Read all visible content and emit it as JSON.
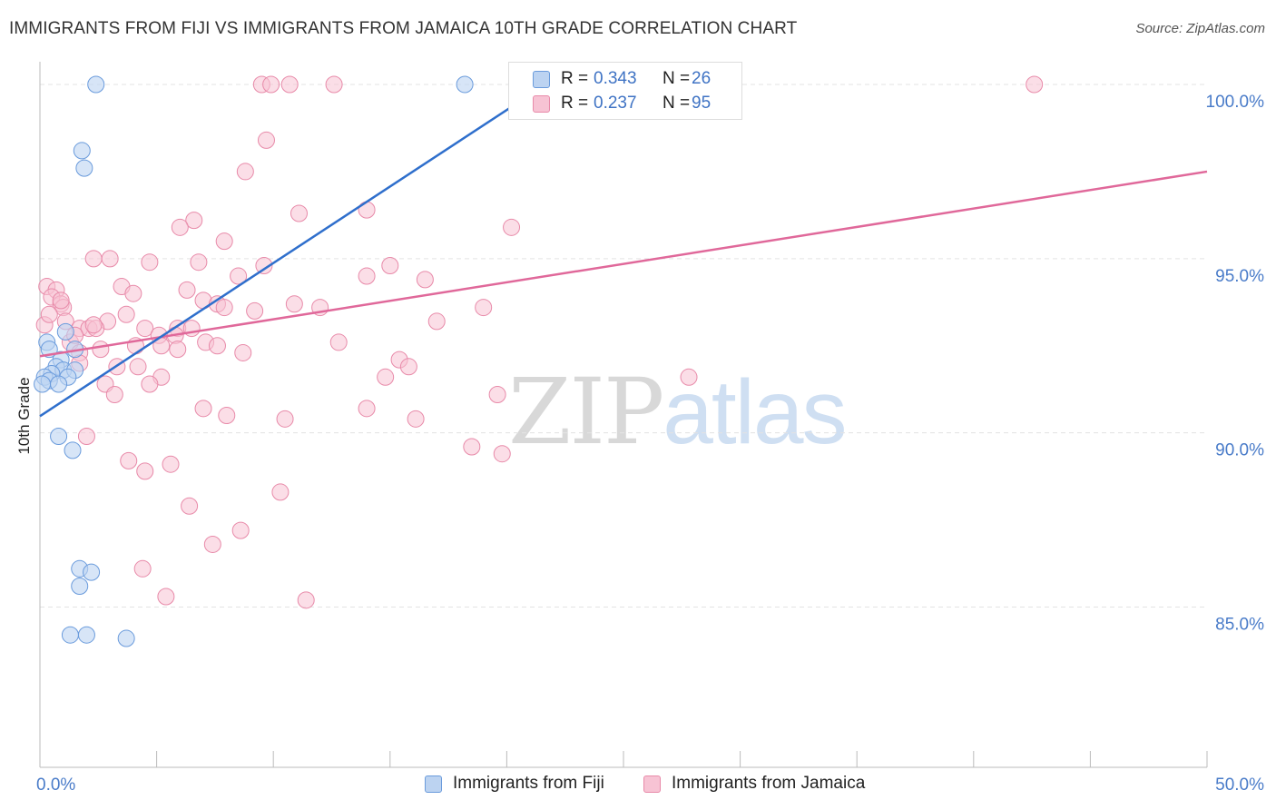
{
  "title": "IMMIGRANTS FROM FIJI VS IMMIGRANTS FROM JAMAICA 10TH GRADE CORRELATION CHART",
  "source": "Source: ZipAtlas.com",
  "watermark": {
    "zip": "ZIP",
    "atlas": "atlas"
  },
  "legend": {
    "fiji": {
      "r_label": "R =",
      "r_value": "0.343",
      "n_label": "N =",
      "n_value": "26"
    },
    "jamaica": {
      "r_label": "R =",
      "r_value": "0.237",
      "n_label": "N =",
      "n_value": "95"
    }
  },
  "bottom_legend": {
    "fiji": "Immigrants from Fiji",
    "jamaica": "Immigrants from Jamaica"
  },
  "colors": {
    "fiji_fill": "#bcd3f1",
    "fiji_stroke": "#6a9bdc",
    "fiji_line": "#2f6fcc",
    "jamaica_fill": "#f7c3d4",
    "jamaica_stroke": "#e88aa9",
    "jamaica_line": "#e0689a",
    "grid": "#e3e3e3",
    "tick_text": "#4a7cc9"
  },
  "chart_data": {
    "type": "scatter",
    "title": "IMMIGRANTS FROM FIJI VS IMMIGRANTS FROM JAMAICA 10TH GRADE CORRELATION CHART",
    "xlabel": "",
    "ylabel": "10th Grade",
    "xlim": [
      0,
      50
    ],
    "ylim": [
      80.4,
      100.6
    ],
    "x_tick_labels": [
      "0.0%",
      "50.0%"
    ],
    "y_ticks": [
      85,
      90,
      95,
      100
    ],
    "y_tick_labels": [
      "85.0%",
      "90.0%",
      "95.0%",
      "100.0%"
    ],
    "grid": true,
    "legend_position": "top-center",
    "series": [
      {
        "name": "Immigrants from Fiji",
        "r": 0.343,
        "n": 26,
        "trend": {
          "x": [
            0,
            20.3
          ],
          "y": [
            90.48,
            99.4
          ]
        },
        "points": [
          {
            "x": 2.4,
            "y": 100.0
          },
          {
            "x": 18.2,
            "y": 100.0
          },
          {
            "x": 1.8,
            "y": 98.1
          },
          {
            "x": 1.9,
            "y": 97.6
          },
          {
            "x": 0.3,
            "y": 92.6
          },
          {
            "x": 0.4,
            "y": 92.4
          },
          {
            "x": 1.1,
            "y": 92.9
          },
          {
            "x": 1.5,
            "y": 92.4
          },
          {
            "x": 0.9,
            "y": 92.1
          },
          {
            "x": 0.7,
            "y": 91.9
          },
          {
            "x": 1.0,
            "y": 91.8
          },
          {
            "x": 1.5,
            "y": 91.8
          },
          {
            "x": 0.5,
            "y": 91.7
          },
          {
            "x": 0.2,
            "y": 91.6
          },
          {
            "x": 1.2,
            "y": 91.6
          },
          {
            "x": 0.4,
            "y": 91.5
          },
          {
            "x": 0.8,
            "y": 91.4
          },
          {
            "x": 0.1,
            "y": 91.4
          },
          {
            "x": 0.8,
            "y": 89.9
          },
          {
            "x": 1.4,
            "y": 89.5
          },
          {
            "x": 1.7,
            "y": 86.1
          },
          {
            "x": 2.2,
            "y": 86.0
          },
          {
            "x": 1.7,
            "y": 85.6
          },
          {
            "x": 1.3,
            "y": 84.2
          },
          {
            "x": 2.0,
            "y": 84.2
          },
          {
            "x": 3.7,
            "y": 84.1
          }
        ]
      },
      {
        "name": "Immigrants from Jamaica",
        "r": 0.237,
        "n": 95,
        "trend": {
          "x": [
            0,
            50
          ],
          "y": [
            92.2,
            97.5
          ]
        },
        "points": [
          {
            "x": 9.5,
            "y": 100.0
          },
          {
            "x": 9.9,
            "y": 100.0
          },
          {
            "x": 10.7,
            "y": 100.0
          },
          {
            "x": 12.6,
            "y": 100.0
          },
          {
            "x": 42.6,
            "y": 100.0
          },
          {
            "x": 25.8,
            "y": 100.0
          },
          {
            "x": 9.7,
            "y": 98.4
          },
          {
            "x": 8.8,
            "y": 97.5
          },
          {
            "x": 14.0,
            "y": 96.4
          },
          {
            "x": 11.1,
            "y": 96.3
          },
          {
            "x": 6.6,
            "y": 96.1
          },
          {
            "x": 6.0,
            "y": 95.9
          },
          {
            "x": 20.2,
            "y": 95.9
          },
          {
            "x": 7.9,
            "y": 95.5
          },
          {
            "x": 2.3,
            "y": 95.0
          },
          {
            "x": 3.0,
            "y": 95.0
          },
          {
            "x": 4.7,
            "y": 94.9
          },
          {
            "x": 6.8,
            "y": 94.9
          },
          {
            "x": 9.6,
            "y": 94.8
          },
          {
            "x": 15.0,
            "y": 94.8
          },
          {
            "x": 8.5,
            "y": 94.5
          },
          {
            "x": 14.0,
            "y": 94.5
          },
          {
            "x": 16.5,
            "y": 94.4
          },
          {
            "x": 3.5,
            "y": 94.2
          },
          {
            "x": 0.3,
            "y": 94.2
          },
          {
            "x": 0.7,
            "y": 94.1
          },
          {
            "x": 4.0,
            "y": 94.0
          },
          {
            "x": 6.3,
            "y": 94.1
          },
          {
            "x": 0.5,
            "y": 93.9
          },
          {
            "x": 7.0,
            "y": 93.8
          },
          {
            "x": 0.9,
            "y": 93.7
          },
          {
            "x": 1.0,
            "y": 93.6
          },
          {
            "x": 7.6,
            "y": 93.7
          },
          {
            "x": 10.9,
            "y": 93.7
          },
          {
            "x": 7.9,
            "y": 93.6
          },
          {
            "x": 12.0,
            "y": 93.6
          },
          {
            "x": 19.0,
            "y": 93.6
          },
          {
            "x": 9.2,
            "y": 93.5
          },
          {
            "x": 3.7,
            "y": 93.4
          },
          {
            "x": 17.0,
            "y": 93.2
          },
          {
            "x": 1.1,
            "y": 93.2
          },
          {
            "x": 2.9,
            "y": 93.2
          },
          {
            "x": 1.7,
            "y": 93.0
          },
          {
            "x": 2.1,
            "y": 93.0
          },
          {
            "x": 2.4,
            "y": 93.0
          },
          {
            "x": 4.5,
            "y": 93.0
          },
          {
            "x": 5.9,
            "y": 93.0
          },
          {
            "x": 5.1,
            "y": 92.8
          },
          {
            "x": 5.8,
            "y": 92.8
          },
          {
            "x": 0.2,
            "y": 93.1
          },
          {
            "x": 1.3,
            "y": 92.6
          },
          {
            "x": 7.1,
            "y": 92.6
          },
          {
            "x": 12.8,
            "y": 92.6
          },
          {
            "x": 2.6,
            "y": 92.4
          },
          {
            "x": 4.1,
            "y": 92.5
          },
          {
            "x": 5.2,
            "y": 92.5
          },
          {
            "x": 5.9,
            "y": 92.4
          },
          {
            "x": 7.6,
            "y": 92.5
          },
          {
            "x": 8.7,
            "y": 92.3
          },
          {
            "x": 1.7,
            "y": 92.3
          },
          {
            "x": 1.7,
            "y": 92.0
          },
          {
            "x": 15.4,
            "y": 92.1
          },
          {
            "x": 3.3,
            "y": 91.9
          },
          {
            "x": 4.2,
            "y": 91.9
          },
          {
            "x": 15.8,
            "y": 91.9
          },
          {
            "x": 14.8,
            "y": 91.6
          },
          {
            "x": 5.2,
            "y": 91.6
          },
          {
            "x": 27.8,
            "y": 91.6
          },
          {
            "x": 2.8,
            "y": 91.4
          },
          {
            "x": 4.7,
            "y": 91.4
          },
          {
            "x": 3.2,
            "y": 91.1
          },
          {
            "x": 19.6,
            "y": 91.1
          },
          {
            "x": 7.0,
            "y": 90.7
          },
          {
            "x": 14.0,
            "y": 90.7
          },
          {
            "x": 8.0,
            "y": 90.5
          },
          {
            "x": 10.5,
            "y": 90.4
          },
          {
            "x": 16.1,
            "y": 90.4
          },
          {
            "x": 2.0,
            "y": 89.9
          },
          {
            "x": 18.5,
            "y": 89.6
          },
          {
            "x": 19.8,
            "y": 89.4
          },
          {
            "x": 3.8,
            "y": 89.2
          },
          {
            "x": 5.6,
            "y": 89.1
          },
          {
            "x": 4.5,
            "y": 88.9
          },
          {
            "x": 10.3,
            "y": 88.3
          },
          {
            "x": 6.4,
            "y": 87.9
          },
          {
            "x": 8.6,
            "y": 87.2
          },
          {
            "x": 7.4,
            "y": 86.8
          },
          {
            "x": 4.4,
            "y": 86.1
          },
          {
            "x": 5.4,
            "y": 85.3
          },
          {
            "x": 11.4,
            "y": 85.2
          },
          {
            "x": 0.9,
            "y": 93.8
          },
          {
            "x": 1.5,
            "y": 92.8
          },
          {
            "x": 0.4,
            "y": 93.4
          },
          {
            "x": 2.3,
            "y": 93.1
          },
          {
            "x": 6.5,
            "y": 93.0
          }
        ]
      }
    ]
  }
}
